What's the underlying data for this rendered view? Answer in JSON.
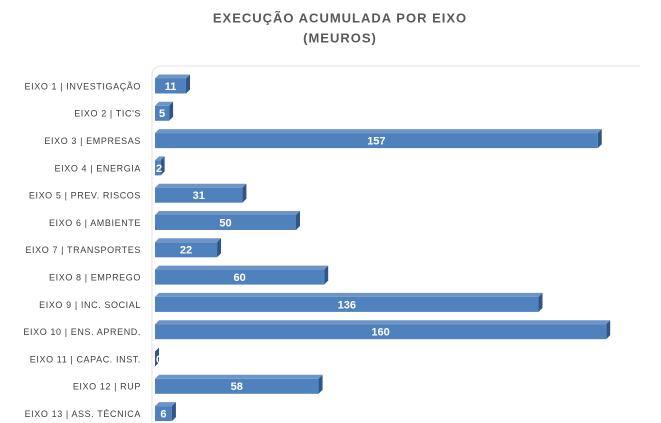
{
  "chart_data": {
    "type": "bar",
    "orientation": "horizontal",
    "title": "EXECUÇÃO ACUMULADA POR EIXO",
    "subtitle": "(MEUROS)",
    "categories": [
      "EIXO 1 | INVESTIGAÇÃO",
      "EIXO 2 | TIC'S",
      "EIXO 3 | EMPRESAS",
      "EIXO 4 | ENERGIA",
      "EIXO 5 | PREV. RISCOS",
      "EIXO 6 | AMBIENTE",
      "EIXO 7 | TRANSPORTES",
      "EIXO 8 | EMPREGO",
      "EIXO 9 | INC. SOCIAL",
      "EIXO 10 | ENS. APREND.",
      "EIXO 11 | CAPAC. INST.",
      "EIXO 12 | RUP",
      "EIXO 13 | ASS. TÉCNICA"
    ],
    "values": [
      11,
      5,
      157,
      2,
      31,
      50,
      22,
      60,
      136,
      160,
      0,
      58,
      6
    ],
    "color": "#4f81bd"
  }
}
